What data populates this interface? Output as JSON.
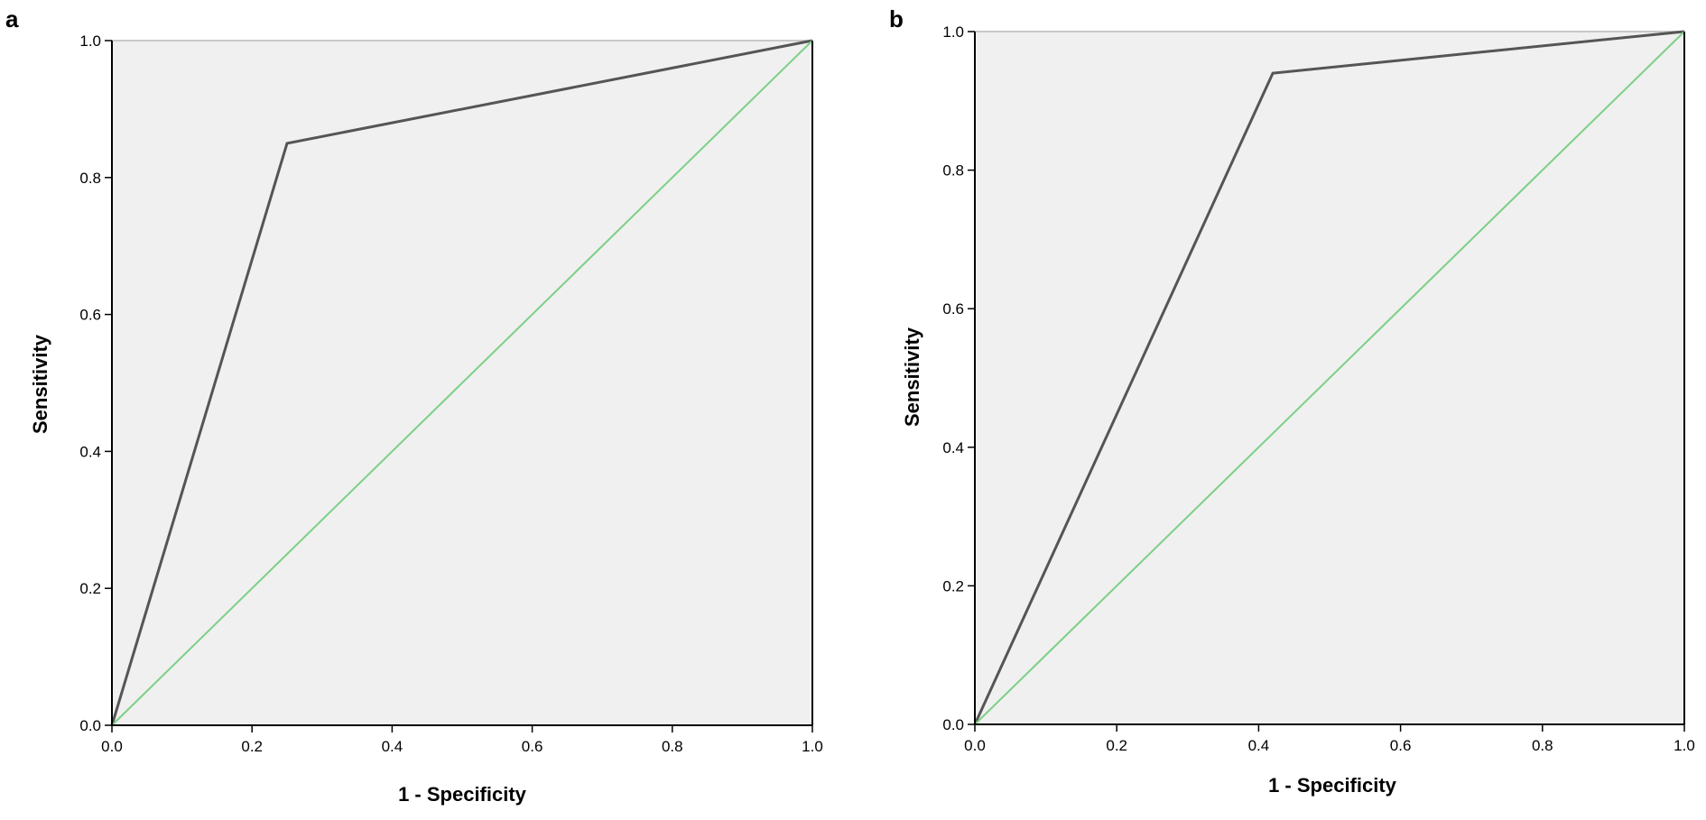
{
  "chart_data": [
    {
      "type": "line",
      "panel_label": "a",
      "xlabel": "1 - Specificity",
      "ylabel": "Sensitivity",
      "xlim": [
        0,
        1
      ],
      "ylim": [
        0,
        1
      ],
      "xticks": [
        "0.0",
        "0.2",
        "0.4",
        "0.6",
        "0.8",
        "1.0"
      ],
      "yticks": [
        "0.0",
        "0.2",
        "0.4",
        "0.6",
        "0.8",
        "1.0"
      ],
      "grid": false,
      "series": [
        {
          "color": "#555555",
          "x": [
            0,
            0.25,
            1
          ],
          "y": [
            0,
            0.85,
            1
          ]
        },
        {
          "color": "#7ccf86",
          "x": [
            0,
            1
          ],
          "y": [
            0,
            1
          ]
        }
      ]
    },
    {
      "type": "line",
      "panel_label": "b",
      "xlabel": "1 - Specificity",
      "ylabel": "Sensitivity",
      "xlim": [
        0,
        1
      ],
      "ylim": [
        0,
        1
      ],
      "xticks": [
        "0.0",
        "0.2",
        "0.4",
        "0.6",
        "0.8",
        "1.0"
      ],
      "yticks": [
        "0.0",
        "0.2",
        "0.4",
        "0.6",
        "0.8",
        "1.0"
      ],
      "grid": false,
      "series": [
        {
          "color": "#555555",
          "x": [
            0,
            0.42,
            1
          ],
          "y": [
            0,
            0.94,
            1
          ]
        },
        {
          "color": "#7ccf86",
          "x": [
            0,
            1
          ],
          "y": [
            0,
            1
          ]
        }
      ]
    }
  ],
  "colors": {
    "plot_background": "#f0f0f0",
    "axis": "#000000",
    "top_border": "#c8c8c8"
  }
}
